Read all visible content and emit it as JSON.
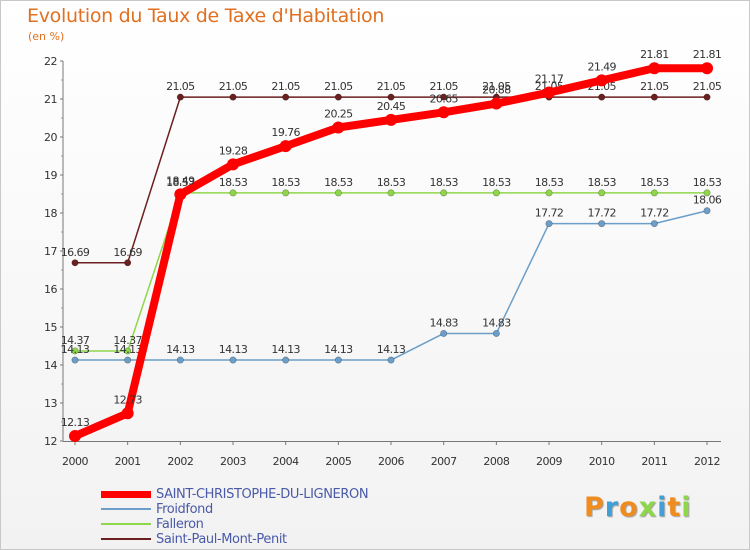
{
  "header": {
    "title": "Evolution du Taux de Taxe d'Habitation",
    "unit": "(en %)"
  },
  "chart_data": {
    "type": "line",
    "title": "Evolution du Taux de Taxe d'Habitation",
    "ylabel": "(en %)",
    "xlabel": "",
    "ylim": [
      12,
      22
    ],
    "yticks": [
      12,
      13,
      14,
      15,
      16,
      17,
      18,
      19,
      20,
      21,
      22
    ],
    "grid": false,
    "legend_position": "bottom",
    "categories": [
      "2000",
      "2001",
      "2002",
      "2003",
      "2004",
      "2005",
      "2006",
      "2007",
      "2008",
      "2009",
      "2010",
      "2011",
      "2012"
    ],
    "series": [
      {
        "name": "Saint-Paul-Mont-Penit",
        "color": "#6b1f1f",
        "values": [
          16.69,
          16.69,
          21.05,
          21.05,
          21.05,
          21.05,
          21.05,
          21.05,
          21.05,
          21.05,
          21.05,
          21.05,
          21.05
        ]
      },
      {
        "name": "Falleron",
        "color": "#8ed64a",
        "values": [
          14.37,
          14.37,
          18.53,
          18.53,
          18.53,
          18.53,
          18.53,
          18.53,
          18.53,
          18.53,
          18.53,
          18.53,
          18.53
        ]
      },
      {
        "name": "Froidfond",
        "color": "#6b9ec8",
        "values": [
          14.13,
          14.13,
          14.13,
          14.13,
          14.13,
          14.13,
          14.13,
          14.83,
          14.83,
          17.72,
          17.72,
          17.72,
          18.06
        ]
      },
      {
        "name": "SAINT-CHRISTOPHE-DU-LIGNERON",
        "color": "#ff0000",
        "values": [
          12.13,
          12.73,
          18.49,
          19.28,
          19.76,
          20.25,
          20.45,
          20.65,
          20.88,
          21.17,
          21.49,
          21.81,
          21.81
        ]
      }
    ],
    "value_labels": {
      "Saint-Paul-Mont-Penit": [
        "16.69",
        "16.69",
        "21.05",
        "21.05",
        "21.05",
        "21.05",
        "21.05",
        "21.05",
        "21.05",
        "21.05",
        "21.05",
        "21.05",
        "21.05"
      ],
      "Falleron": [
        "14.37",
        "14.37",
        "18.53",
        "18.53",
        "18.53",
        "18.53",
        "18.53",
        "18.53",
        "18.53",
        "18.53",
        "18.53",
        "18.53",
        "18.53"
      ],
      "Froidfond": [
        "14.13",
        "14.13",
        "14.13",
        "14.13",
        "14.13",
        "14.13",
        "14.13",
        "14.83",
        "14.83",
        "17.72",
        "17.72",
        "17.72",
        "18.06"
      ],
      "SAINT-CHRISTOPHE-DU-LIGNERON": [
        "12.13",
        "12.73",
        "18.49",
        "19.28",
        "19.76",
        "20.25",
        "20.45",
        "20.65",
        "20.88",
        "21.17",
        "21.49",
        "21.81",
        "21.81"
      ]
    }
  },
  "legend": {
    "items": [
      {
        "label": "SAINT-CHRISTOPHE-DU-LIGNERON",
        "color": "#ff0000",
        "weight": "thick"
      },
      {
        "label": "Froidfond",
        "color": "#6b9ec8",
        "weight": "thin"
      },
      {
        "label": "Falleron",
        "color": "#8ed64a",
        "weight": "thin"
      },
      {
        "label": "Saint-Paul-Mont-Penit",
        "color": "#6b1f1f",
        "weight": "thin"
      }
    ]
  },
  "logo": {
    "text": "Proxiti",
    "letter_colors": [
      "#f08c1e",
      "#3fa0d8",
      "#f08c1e",
      "#8ed64a",
      "#3fa0d8",
      "#f08c1e",
      "#8ed64a"
    ]
  }
}
